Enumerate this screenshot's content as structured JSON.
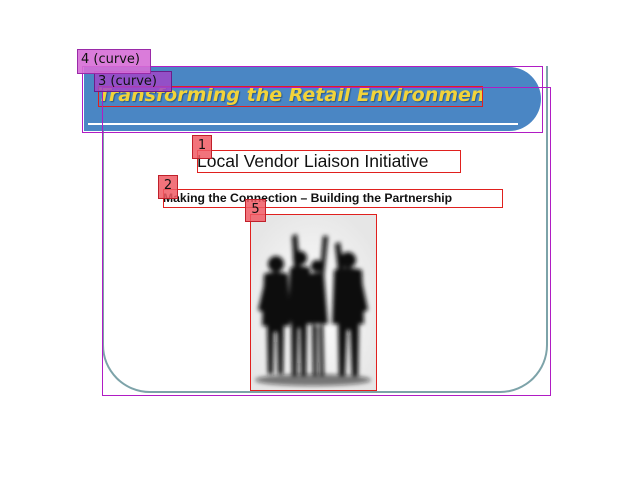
{
  "slide": {
    "header_title": "Transforming the Retail Environment",
    "title": "Local Vendor Liaison Initiative",
    "subtitle": "Making the Connection – Building the Partnership",
    "image_icon": "team-celebration-photo"
  },
  "colors": {
    "banner": "#4a86c4",
    "header_text": "#f2d33a",
    "frame": "#7da3a9",
    "box_red": "#e0201e",
    "box_purple": "#b01cc4"
  },
  "annotations": [
    {
      "label": "1"
    },
    {
      "label": "2"
    },
    {
      "label": "3 (curve)"
    },
    {
      "label": "4 (curve)"
    },
    {
      "label": "5"
    }
  ]
}
